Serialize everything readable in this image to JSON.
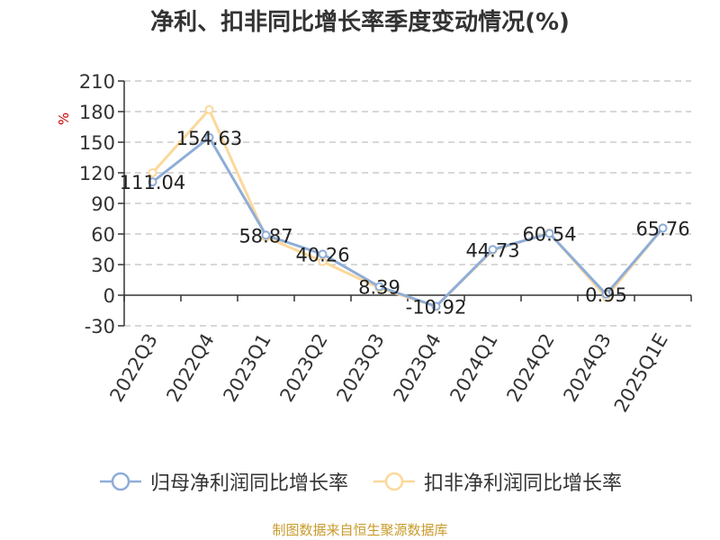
{
  "chart_data": {
    "type": "line",
    "title": "净利、扣非同比增长率季度变动情况(%)",
    "ylabel": "%",
    "categories": [
      "2022Q3",
      "2022Q4",
      "2023Q1",
      "2023Q2",
      "2023Q3",
      "2023Q4",
      "2024Q1",
      "2024Q2",
      "2024Q3",
      "2025Q1E"
    ],
    "ylim": [
      -30,
      210
    ],
    "yticks": [
      -30,
      0,
      30,
      60,
      90,
      120,
      150,
      180,
      210
    ],
    "grid": true,
    "legend": "bottom",
    "series": [
      {
        "name": "归母净利润同比增长率",
        "color": "#8eadd8",
        "values": [
          111.04,
          154.63,
          58.87,
          40.26,
          8.39,
          -10.92,
          44.73,
          60.54,
          0.95,
          65.76
        ],
        "labels": [
          "111.04",
          "154.63",
          "58.87",
          "40.26",
          "8.39",
          "-10.92",
          "44.73",
          "60.54",
          "0.95",
          "65.76"
        ]
      },
      {
        "name": "扣非净利润同比增长率",
        "color": "#fcd89a",
        "values": [
          120,
          182,
          57,
          33,
          7,
          -11,
          44,
          61,
          -2,
          66
        ]
      }
    ],
    "source": "制图数据来自恒生聚源数据库"
  }
}
